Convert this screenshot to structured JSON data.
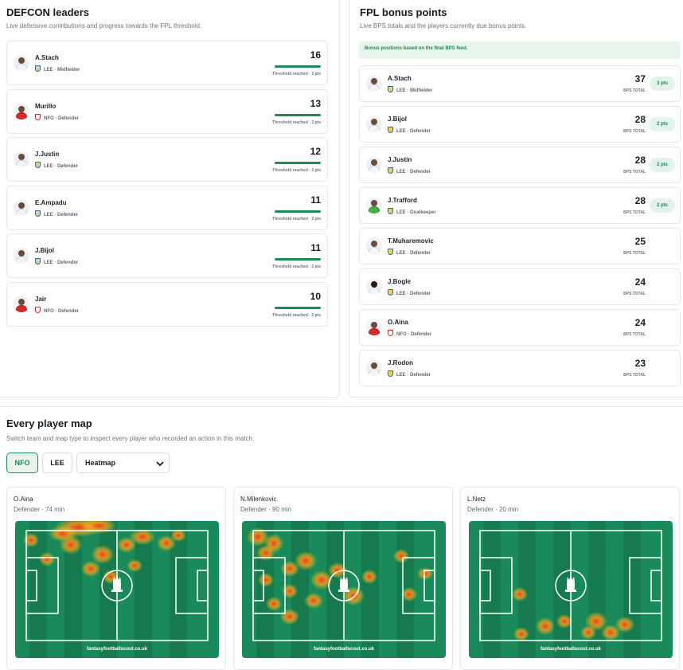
{
  "defcon": {
    "title": "DEFCON leaders",
    "subtitle": "Live defensive contributions and progress towards the FPL threshold.",
    "players": [
      {
        "name": "A.Stach",
        "team": "LEE",
        "meta": "LEE · Midfielder",
        "score": "16",
        "threshold": "Threshold reached · 2 pts",
        "progress": 1.0
      },
      {
        "name": "Murillo",
        "team": "NFO",
        "meta": "NFO · Defender",
        "score": "13",
        "threshold": "Threshold reached · 2 pts",
        "progress": 1.0
      },
      {
        "name": "J.Justin",
        "team": "LEE",
        "meta": "LEE · Defender",
        "score": "12",
        "threshold": "Threshold reached · 2 pts",
        "progress": 1.0
      },
      {
        "name": "E.Ampadu",
        "team": "LEE",
        "meta": "LEE · Defender",
        "score": "11",
        "threshold": "Threshold reached · 2 pts",
        "progress": 1.0
      },
      {
        "name": "J.Bijol",
        "team": "LEE",
        "meta": "LEE · Defender",
        "score": "11",
        "threshold": "Threshold reached · 2 pts",
        "progress": 1.0
      },
      {
        "name": "Jair",
        "team": "NFO",
        "meta": "NFO · Defender",
        "score": "10",
        "threshold": "Threshold reached · 2 pts",
        "progress": 1.0
      }
    ]
  },
  "bonus": {
    "title": "FPL bonus points",
    "subtitle": "Live BPS totals and the players currently due bonus points.",
    "banner": "Bonus positions based on the final BPS feed.",
    "bps_label": "BPS TOTAL",
    "players": [
      {
        "name": "A.Stach",
        "team": "LEE",
        "meta": "LEE · Midfielder",
        "bps": "37",
        "bonus": "3 pts"
      },
      {
        "name": "J.Bijol",
        "team": "LEE",
        "meta": "LEE · Defender",
        "bps": "28",
        "bonus": "2 pts"
      },
      {
        "name": "J.Justin",
        "team": "LEE",
        "meta": "LEE · Defender",
        "bps": "28",
        "bonus": "2 pts"
      },
      {
        "name": "J.Trafford",
        "team": "LEE",
        "meta": "LEE · Goalkeeper",
        "bps": "28",
        "bonus": "2 pts"
      },
      {
        "name": "T.Muharemovic",
        "team": "LEE",
        "meta": "LEE · Defender",
        "bps": "25",
        "bonus": ""
      },
      {
        "name": "J.Bogle",
        "team": "LEE",
        "meta": "LEE · Defender",
        "bps": "24",
        "bonus": ""
      },
      {
        "name": "O.Aina",
        "team": "NFO",
        "meta": "NFO · Defender",
        "bps": "24",
        "bonus": ""
      },
      {
        "name": "J.Rodon",
        "team": "LEE",
        "meta": "LEE · Defender",
        "bps": "23",
        "bonus": ""
      }
    ]
  },
  "player_map": {
    "title": "Every player map",
    "subtitle": "Switch team and map type to inspect every player who recorded an action in this match.",
    "team_buttons": [
      "NFO",
      "LEE"
    ],
    "active_team": "NFO",
    "map_type": "Heatmap",
    "watermark": "fantasyfootballscout.co.uk",
    "maps": [
      {
        "name": "O.Aina",
        "detail": "Defender · 74 min"
      },
      {
        "name": "N.Milenkovic",
        "detail": "Defender · 90 min"
      },
      {
        "name": "L.Netz",
        "detail": "Defender · 20 min"
      }
    ]
  },
  "colors": {
    "accent": "#1a8a56",
    "pitch": "#1b8a5a",
    "pitch_dark": "#177a4f"
  },
  "icons": [
    "player-avatar-icon",
    "team-crest-icon",
    "chevron-down-icon",
    "crown-logo-icon"
  ]
}
